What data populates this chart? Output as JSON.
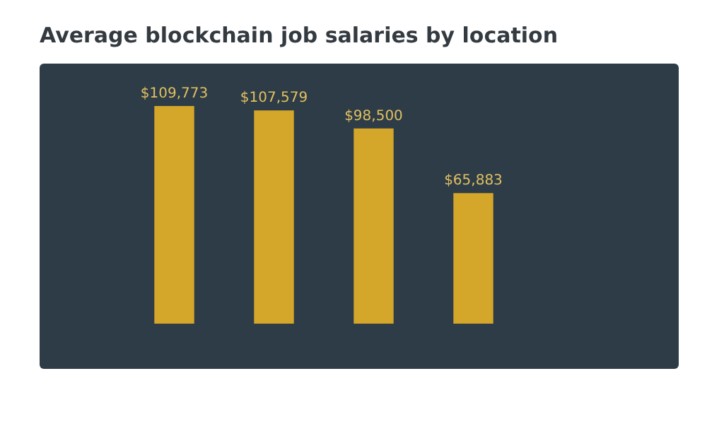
{
  "chart_data": {
    "type": "bar",
    "title": "Average blockchain job salaries by location",
    "categories": [
      null,
      null,
      null,
      null
    ],
    "values": [
      109773,
      107579,
      98500,
      65883
    ],
    "value_labels": [
      "$109,773",
      "$107,579",
      "$98,500",
      "$65,883"
    ],
    "color": "#d4a62a"
  }
}
